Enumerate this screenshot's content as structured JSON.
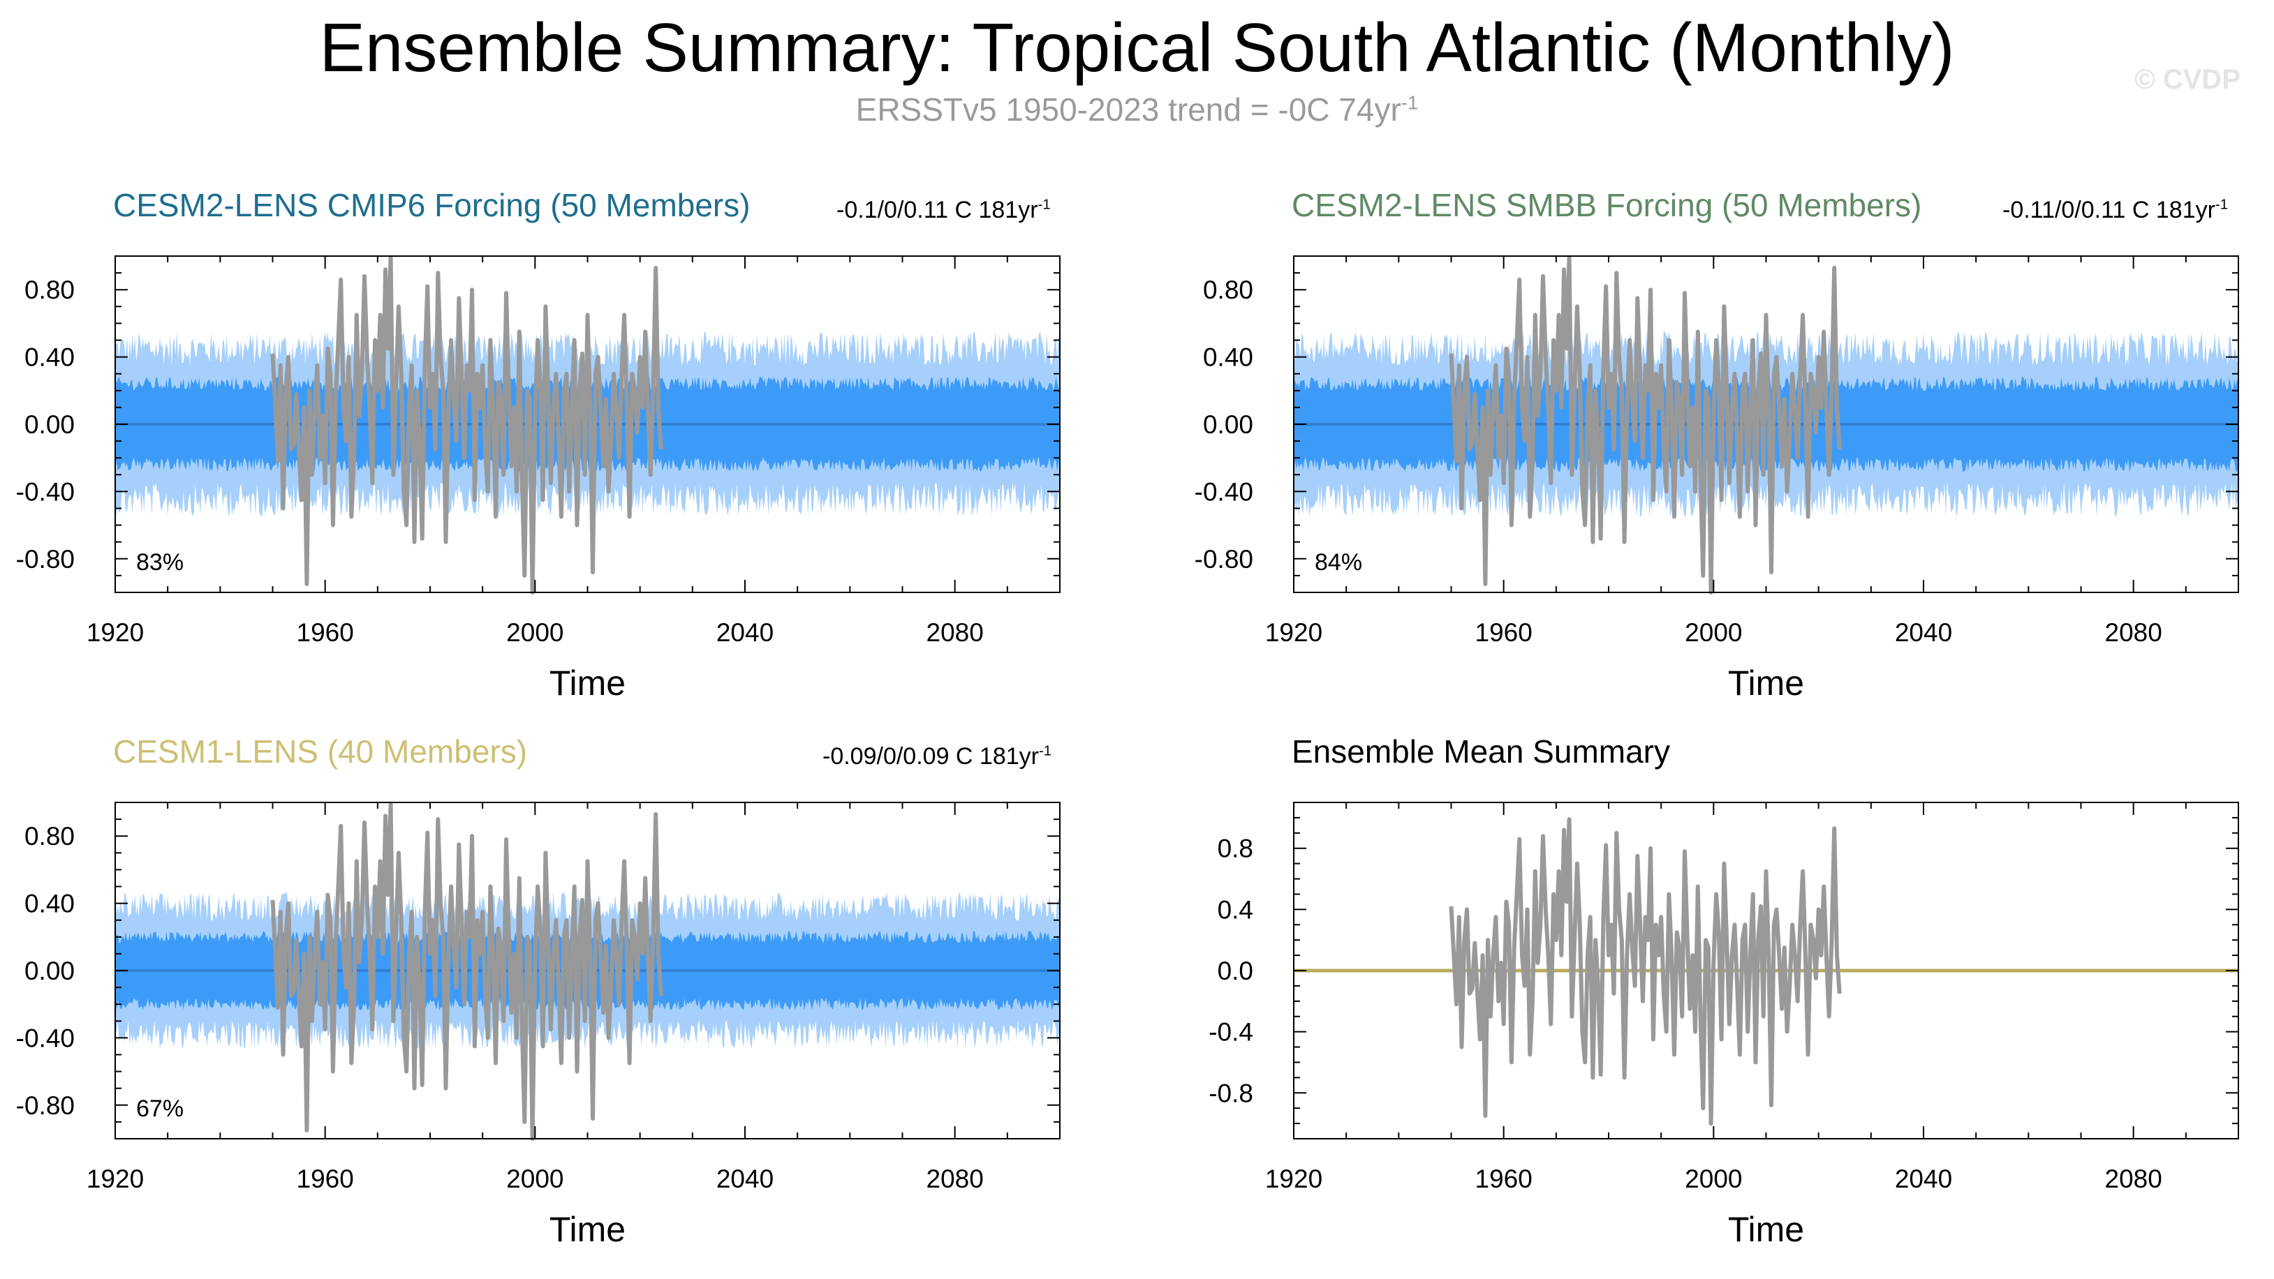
{
  "title": "Ensemble Summary: Tropical South Atlantic (Monthly)",
  "subtitle": {
    "prefix": "ERSSTv5 1950-2023 trend = -0C 74yr",
    "exponent": "-1"
  },
  "watermark": "© CVDP",
  "colors": {
    "envelope_outer": "#a6d0fb",
    "envelope_inner": "#3d9bf8",
    "ensemble_mean": "#2f7fd4",
    "observations": "#999999",
    "panel1_title": "#1e6e8e",
    "panel2_title": "#5f8a65",
    "panel3_title": "#cdbf74",
    "panel4_title": "#000000",
    "mean_summary_line": "#b8ac5c"
  },
  "chart_data": [
    {
      "type": "area",
      "title": "CESM2-LENS CMIP6 Forcing (50 Members)",
      "trend_label": {
        "prefix": "-0.1/0/0.11 C 181yr",
        "exponent": "-1"
      },
      "percent_label": "83%",
      "xlabel": "Time",
      "xlim": [
        1920,
        2100
      ],
      "ylim": [
        -1.0,
        1.0
      ],
      "x_ticks": [
        "1920",
        "1960",
        "2000",
        "2040",
        "2080"
      ],
      "y_ticks": [
        "0.80",
        "0.40",
        "0.00",
        "-0.40",
        "-0.80"
      ],
      "envelope": {
        "outer_halfwidth": 0.45,
        "inner_halfwidth": 0.24
      },
      "series": [
        {
          "name": "Ensemble mean",
          "x": [
            1920,
            2100
          ],
          "y": [
            0.0,
            0.0
          ]
        },
        {
          "name": "ERSSTv5",
          "ref": "obs"
        }
      ]
    },
    {
      "type": "area",
      "title": "CESM2-LENS SMBB Forcing (50 Members)",
      "trend_label": {
        "prefix": "-0.11/0/0.11 C 181yr",
        "exponent": "-1"
      },
      "percent_label": "84%",
      "xlabel": "Time",
      "xlim": [
        1920,
        2100
      ],
      "ylim": [
        -1.0,
        1.0
      ],
      "x_ticks": [
        "1920",
        "1960",
        "2000",
        "2040",
        "2080"
      ],
      "y_ticks": [
        "0.80",
        "0.40",
        "0.00",
        "-0.40",
        "-0.80"
      ],
      "envelope": {
        "outer_halfwidth": 0.45,
        "inner_halfwidth": 0.24
      },
      "series": [
        {
          "name": "Ensemble mean",
          "x": [
            1920,
            2100
          ],
          "y": [
            0.0,
            0.0
          ]
        },
        {
          "name": "ERSSTv5",
          "ref": "obs"
        }
      ]
    },
    {
      "type": "area",
      "title": "CESM1-LENS (40 Members)",
      "trend_label": {
        "prefix": "-0.09/0/0.09 C 181yr",
        "exponent": "-1"
      },
      "percent_label": "67%",
      "xlabel": "Time",
      "xlim": [
        1920,
        2100
      ],
      "ylim": [
        -1.0,
        1.0
      ],
      "x_ticks": [
        "1920",
        "1960",
        "2000",
        "2040",
        "2080"
      ],
      "y_ticks": [
        "0.80",
        "0.40",
        "0.00",
        "-0.40",
        "-0.80"
      ],
      "envelope": {
        "outer_halfwidth": 0.38,
        "inner_halfwidth": 0.2
      },
      "series": [
        {
          "name": "Ensemble mean",
          "x": [
            1920,
            2100
          ],
          "y": [
            0.0,
            0.0
          ]
        },
        {
          "name": "ERSSTv5",
          "ref": "obs"
        }
      ]
    },
    {
      "type": "line",
      "title": "Ensemble Mean Summary",
      "xlabel": "Time",
      "xlim": [
        1920,
        2100
      ],
      "ylim": [
        -1.1,
        1.1
      ],
      "x_ticks": [
        "1920",
        "1960",
        "2000",
        "2040",
        "2080"
      ],
      "y_ticks": [
        "0.8",
        "0.4",
        "0.0",
        "-0.4",
        "-0.8"
      ],
      "series": [
        {
          "name": "Ensemble mean",
          "x": [
            1920,
            2100
          ],
          "y": [
            0.0,
            0.0
          ]
        },
        {
          "name": "ERSSTv5",
          "ref": "obs"
        }
      ]
    }
  ],
  "obs_series": {
    "x": [
      1950.0,
      1950.5,
      1951.0,
      1951.5,
      1952.0,
      1952.5,
      1953.0,
      1953.5,
      1954.0,
      1954.5,
      1955.0,
      1955.5,
      1956.0,
      1956.5,
      1957.0,
      1957.5,
      1958.0,
      1958.5,
      1959.0,
      1959.5,
      1960.0,
      1960.5,
      1961.0,
      1961.5,
      1962.0,
      1962.5,
      1963.0,
      1963.5,
      1964.0,
      1964.5,
      1965.0,
      1965.5,
      1966.0,
      1966.5,
      1967.0,
      1967.5,
      1968.0,
      1968.5,
      1969.0,
      1969.5,
      1970.0,
      1970.5,
      1971.0,
      1971.5,
      1972.0,
      1972.5,
      1973.0,
      1973.5,
      1974.0,
      1974.5,
      1975.0,
      1975.5,
      1976.0,
      1976.5,
      1977.0,
      1977.5,
      1978.0,
      1978.5,
      1979.0,
      1979.5,
      1980.0,
      1980.5,
      1981.0,
      1981.5,
      1982.0,
      1982.5,
      1983.0,
      1983.5,
      1984.0,
      1984.5,
      1985.0,
      1985.5,
      1986.0,
      1986.5,
      1987.0,
      1987.5,
      1988.0,
      1988.5,
      1989.0,
      1989.5,
      1990.0,
      1990.5,
      1991.0,
      1991.5,
      1992.0,
      1992.5,
      1993.0,
      1993.5,
      1994.0,
      1994.5,
      1995.0,
      1995.5,
      1996.0,
      1996.5,
      1997.0,
      1997.5,
      1998.0,
      1998.5,
      1999.0,
      1999.5,
      2000.0,
      2000.5,
      2001.0,
      2001.5,
      2002.0,
      2002.5,
      2003.0,
      2003.5,
      2004.0,
      2004.5,
      2005.0,
      2005.5,
      2006.0,
      2006.5,
      2007.0,
      2007.5,
      2008.0,
      2008.5,
      2009.0,
      2009.5,
      2010.0,
      2010.5,
      2011.0,
      2011.5,
      2012.0,
      2012.5,
      2013.0,
      2013.5,
      2014.0,
      2014.5,
      2015.0,
      2015.5,
      2016.0,
      2016.5,
      2017.0,
      2017.5,
      2018.0,
      2018.5,
      2019.0,
      2019.5,
      2020.0,
      2020.5,
      2021.0,
      2021.5,
      2022.0,
      2022.5,
      2023.0,
      2023.5,
      2024.0
    ],
    "y": [
      0.42,
      0.1,
      -0.22,
      0.35,
      -0.5,
      0.2,
      0.4,
      -0.15,
      -0.12,
      0.18,
      -0.15,
      -0.45,
      0.1,
      -0.95,
      0.2,
      -0.3,
      0.1,
      0.35,
      -0.2,
      0.05,
      -0.35,
      0.45,
      0.3,
      -0.6,
      0.15,
      0.5,
      0.86,
      0.1,
      -0.1,
      0.4,
      -0.55,
      -0.2,
      0.65,
      0.05,
      0.3,
      0.88,
      0.4,
      0.1,
      -0.35,
      0.5,
      0.2,
      0.65,
      0.1,
      0.92,
      0.45,
      0.99,
      -0.3,
      0.2,
      0.7,
      0.3,
      -0.4,
      -0.6,
      0.1,
      0.35,
      -0.7,
      0.2,
      -0.1,
      -0.68,
      0.35,
      0.82,
      0.1,
      0.3,
      -0.15,
      0.9,
      0.4,
      0.2,
      -0.7,
      0.1,
      0.5,
      0.15,
      -0.1,
      0.75,
      0.3,
      -0.2,
      0.35,
      0.2,
      0.8,
      -0.45,
      0.3,
      0.1,
      0.35,
      -0.15,
      -0.4,
      0.5,
      0.1,
      -0.55,
      0.25,
      0.15,
      -0.3,
      0.78,
      0.2,
      -0.25,
      0.1,
      -0.4,
      0.55,
      -0.3,
      -0.9,
      0.2,
      0.15,
      -1.0,
      0.05,
      0.5,
      0.25,
      -0.45,
      0.7,
      0.2,
      -0.35,
      0.1,
      0.3,
      -0.1,
      -0.55,
      0.2,
      0.3,
      -0.4,
      0.1,
      0.5,
      -0.6,
      0.2,
      0.42,
      -0.3,
      0.65,
      0.1,
      -0.88,
      0.3,
      0.4,
      0.1,
      -0.25,
      0.15,
      -0.4,
      -0.1,
      0.3,
      0.1,
      -0.2,
      0.3,
      0.65,
      0.1,
      -0.55,
      0.3,
      0.2,
      -0.05,
      0.4,
      0.1,
      0.55,
      0.1,
      -0.3,
      0.2,
      0.93,
      0.1,
      -0.15
    ]
  }
}
